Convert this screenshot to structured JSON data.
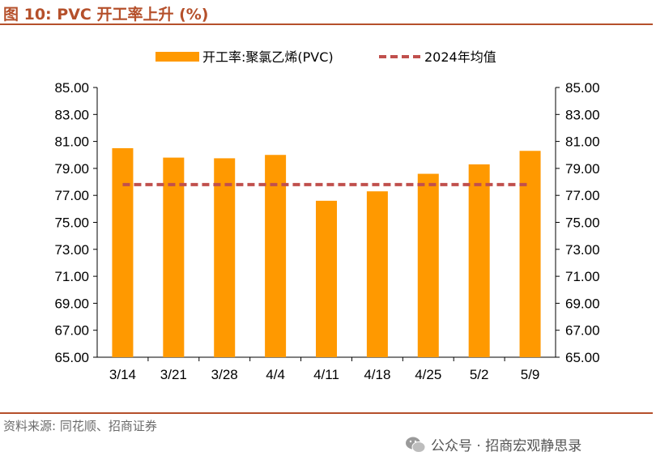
{
  "header": {
    "title": "图 10:  PVC 开工率上升 (%)"
  },
  "footer": {
    "source": "资料来源: 同花顺、招商证券",
    "watermark": "公众号 · 招商宏观静思录"
  },
  "colors": {
    "bar": "#ff9900",
    "avg_line": "#c0504d",
    "accent": "#b5502b"
  },
  "chart_data": {
    "type": "bar",
    "categories": [
      "3/14",
      "3/21",
      "3/28",
      "4/4",
      "4/11",
      "4/18",
      "4/25",
      "5/2",
      "5/9"
    ],
    "series": [
      {
        "name": "开工率:聚氯乙烯(PVC)",
        "type": "bar",
        "values": [
          80.5,
          79.8,
          79.75,
          80.0,
          76.6,
          77.3,
          78.6,
          79.3,
          80.3
        ]
      },
      {
        "name": "2024年均值",
        "type": "line-dashed",
        "values": [
          77.8,
          77.8,
          77.8,
          77.8,
          77.8,
          77.8,
          77.8,
          77.8,
          77.8
        ]
      }
    ],
    "ylim": [
      65,
      85
    ],
    "yticks": [
      "85.00",
      "83.00",
      "81.00",
      "79.00",
      "77.00",
      "75.00",
      "73.00",
      "71.00",
      "69.00",
      "67.00",
      "65.00"
    ],
    "legend_position": "top",
    "grid": false
  }
}
